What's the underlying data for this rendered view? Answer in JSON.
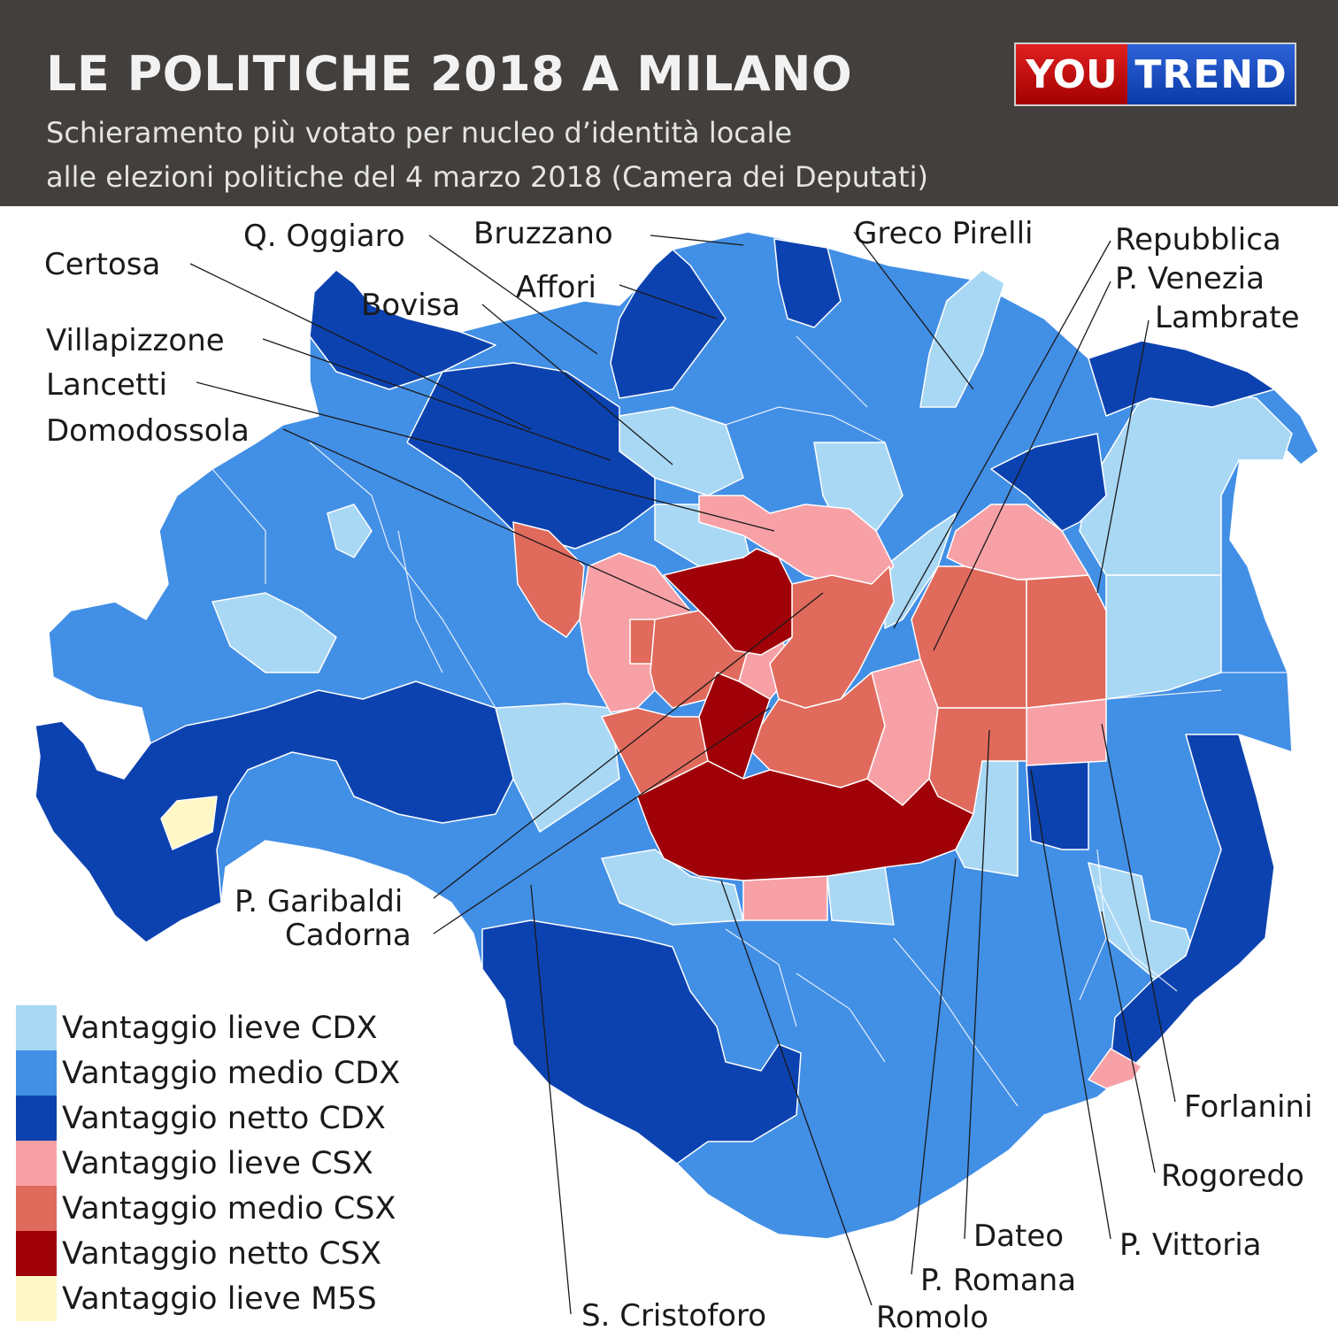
{
  "header": {
    "title": "LE POLITICHE 2018 A MILANO",
    "subtitle_line1": "Schieramento più votato per nucleo d’identità locale",
    "subtitle_line2": "alle elezioni politiche del 4 marzo 2018 (Camera dei Deputati)"
  },
  "logo": {
    "part1": "YOU",
    "part2": "TREND"
  },
  "colors": {
    "lieve_cdx": "#a9d8f5",
    "medio_cdx": "#428fe6",
    "netto_cdx": "#0c42b0",
    "lieve_csx": "#f7a1a7",
    "medio_csx": "#e06a5c",
    "netto_csx": "#a00007",
    "lieve_m5s": "#fff7c6"
  },
  "legend": [
    {
      "label": "Vantaggio lieve CDX",
      "color": "#a9d8f5"
    },
    {
      "label": "Vantaggio medio CDX",
      "color": "#428fe6"
    },
    {
      "label": "Vantaggio netto CDX",
      "color": "#0c42b0"
    },
    {
      "label": "Vantaggio lieve CSX",
      "color": "#f7a1a7"
    },
    {
      "label": "Vantaggio medio CSX",
      "color": "#e06a5c"
    },
    {
      "label": "Vantaggio netto CSX",
      "color": "#a00007"
    },
    {
      "label": "Vantaggio lieve M5S",
      "color": "#fff7c6"
    }
  ],
  "labels": {
    "q_oggiaro": "Q. Oggiaro",
    "bruzzano": "Bruzzano",
    "greco_pirelli": "Greco Pirelli",
    "repubblica": "Repubblica",
    "p_venezia": "P. Venezia",
    "lambrate": "Lambrate",
    "certosa": "Certosa",
    "affori": "Affori",
    "bovisa": "Bovisa",
    "villapizzone": "Villapizzone",
    "lancetti": "Lancetti",
    "domodossola": "Domodossola",
    "p_garibaldi": "P. Garibaldi",
    "cadorna": "Cadorna",
    "forlanini": "Forlanini",
    "rogoredo": "Rogoredo",
    "p_vittoria": "P. Vittoria",
    "dateo": "Dateo",
    "p_romana": "P. Romana",
    "romolo": "Romolo",
    "s_cristoforo": "S. Cristoforo"
  }
}
